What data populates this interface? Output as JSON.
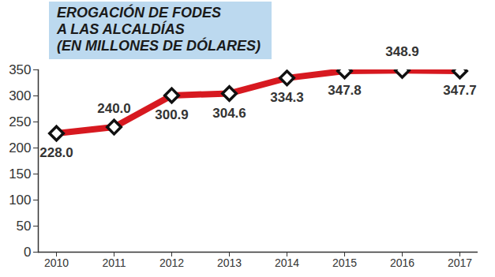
{
  "chart_data": {
    "type": "line",
    "title": "EROGACIÓN DE FODES\nA LAS ALCALDÍAS\n(EN MILLONES DE DÓLARES)",
    "categories": [
      "2010",
      "2011",
      "2012",
      "2013",
      "2014",
      "2015",
      "2016",
      "2017"
    ],
    "values": [
      228.0,
      240.0,
      300.9,
      304.6,
      334.3,
      347.8,
      348.9,
      347.7
    ],
    "value_labels": [
      "228.0",
      "240.0",
      "300.9",
      "304.6",
      "334.3",
      "347.8",
      "348.9",
      "347.7"
    ],
    "color": "#d71920",
    "marker": "diamond",
    "data_labels": true,
    "grid": false,
    "ylim": [
      0,
      350
    ],
    "yticks": [
      0,
      50,
      100,
      150,
      200,
      250,
      300,
      350
    ]
  }
}
